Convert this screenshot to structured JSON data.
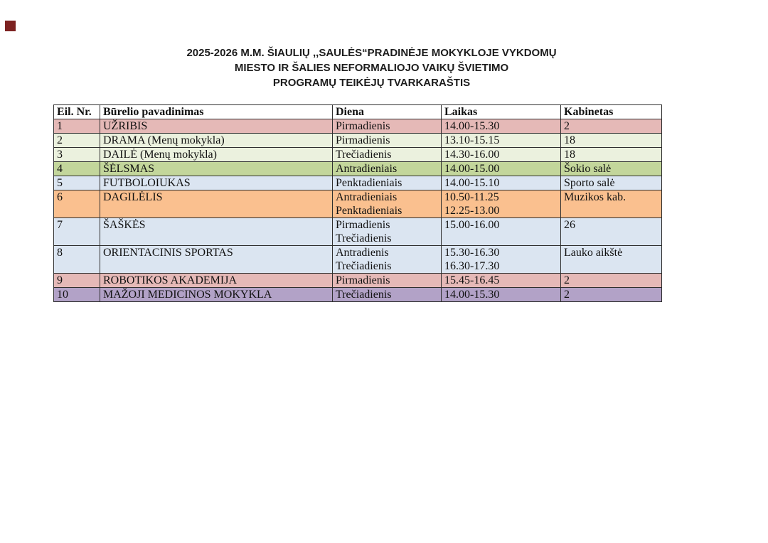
{
  "page": {
    "corner_marker_color": "#7d2221",
    "background_color": "#ffffff",
    "border_color": "#2f2f2f"
  },
  "title": {
    "line1": "2025-2026 M.M. ŠIAULIŲ ,,SAULĖS“PRADINĖJE MOKYKLOJE VYKDOMŲ",
    "line2": "MIESTO IR ŠALIES NEFORMALIOJO VAIKŲ ŠVIETIMO",
    "line3": "PROGRAMŲ TEIKĖJŲ TVARKARAŠTIS"
  },
  "table": {
    "headers": [
      "Eil. Nr.",
      "Būrelio pavadinimas",
      "Diena",
      "Laikas",
      "Kabinetas"
    ],
    "rows": [
      {
        "nr": "1",
        "name": "UŽRIBIS",
        "diena": [
          "Pirmadienis"
        ],
        "laikas": [
          "14.00-15.30"
        ],
        "kabinetas": "2",
        "color": "#E5B9B7"
      },
      {
        "nr": "2",
        "name": "DRAMA (Menų mokykla)",
        "diena": [
          "Pirmadienis"
        ],
        "laikas": [
          "13.10-15.15"
        ],
        "kabinetas": "18",
        "color": "#EBF1DE"
      },
      {
        "nr": "3",
        "name": "DAILĖ (Menų mokykla)",
        "diena": [
          "Trečiadienis"
        ],
        "laikas": [
          "14.30-16.00"
        ],
        "kabinetas": "18",
        "color": "#EBF1DE"
      },
      {
        "nr": "4",
        "name": "ŠĖLSMAS",
        "diena": [
          "Antradieniais"
        ],
        "laikas": [
          "14.00-15.00"
        ],
        "kabinetas": "Šokio salė",
        "color": "#C3D69B"
      },
      {
        "nr": "5",
        "name": "FUTBOLOIUKAS",
        "diena": [
          "Penktadieniais"
        ],
        "laikas": [
          "14.00-15.10"
        ],
        "kabinetas": "Sporto salė",
        "color": "#DBE5F1"
      },
      {
        "nr": "6",
        "name": "DAGILĖLIS",
        "diena": [
          "Antradieniais",
          "Penktadieniais"
        ],
        "laikas": [
          "10.50-11.25",
          "12.25-13.00"
        ],
        "kabinetas": "Muzikos kab.",
        "color": "#FAC08F"
      },
      {
        "nr": "7",
        "name": "ŠAŠKĖS",
        "diena": [
          "Pirmadienis",
          "Trečiadienis"
        ],
        "laikas": [
          "15.00-16.00"
        ],
        "kabinetas": "26",
        "color": "#DBE5F1"
      },
      {
        "nr": "8",
        "name": "ORIENTACINIS SPORTAS",
        "diena": [
          "Antradienis",
          "Trečiadienis"
        ],
        "laikas": [
          "15.30-16.30",
          "16.30-17.30"
        ],
        "kabinetas": "Lauko aikštė",
        "color": "#DBE5F1"
      },
      {
        "nr": "9",
        "name": "ROBOTIKOS AKADEMIJA",
        "diena": [
          "Pirmadienis"
        ],
        "laikas": [
          "15.45-16.45"
        ],
        "kabinetas": "2",
        "color": "#E5B9B7"
      },
      {
        "nr": "10",
        "name": "MAŽOJI MEDICINOS MOKYKLA",
        "diena": [
          "Trečiadienis"
        ],
        "laikas": [
          "14.00-15.30"
        ],
        "kabinetas": "2",
        "color": "#B2A2C7"
      }
    ]
  }
}
